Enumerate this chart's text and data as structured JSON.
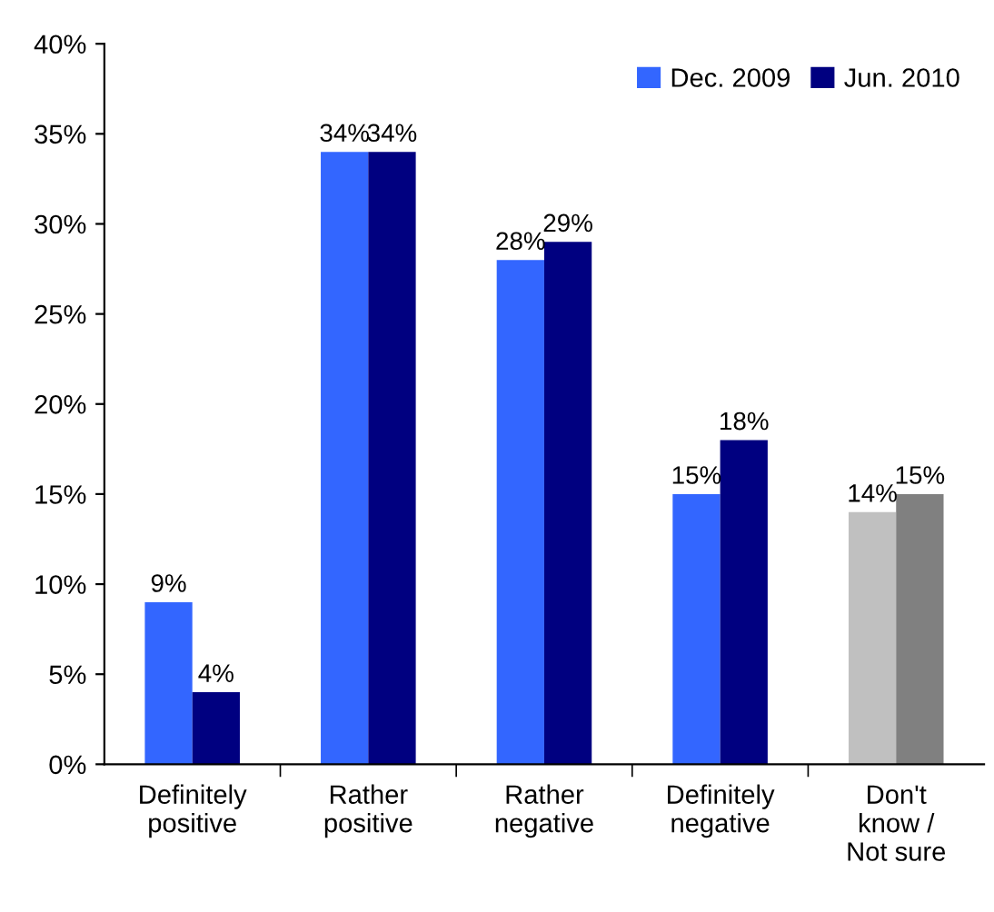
{
  "chart_data": {
    "type": "bar",
    "categories": [
      "Definitely\npositive",
      "Rather\npositive",
      "Rather\nnegative",
      "Definitely\nnegative",
      "Don't\nknow /\nNot sure"
    ],
    "series": [
      {
        "name": "Dec. 2009",
        "color": "#3366ff",
        "colors": [
          "#3366ff",
          "#3366ff",
          "#3366ff",
          "#3366ff",
          "#c0c0c0"
        ],
        "values": [
          9,
          34,
          28,
          15,
          14
        ],
        "value_labels": [
          "9%",
          "34%",
          "28%",
          "15%",
          "14%"
        ]
      },
      {
        "name": "Jun. 2010",
        "color": "#000080",
        "colors": [
          "#000080",
          "#000080",
          "#000080",
          "#000080",
          "#808080"
        ],
        "values": [
          4,
          34,
          29,
          18,
          15
        ],
        "value_labels": [
          "4%",
          "34%",
          "29%",
          "18%",
          "15%"
        ]
      }
    ],
    "ylim": [
      0,
      40
    ],
    "yticks": [
      {
        "value": 0,
        "label": "0%"
      },
      {
        "value": 5,
        "label": "5%"
      },
      {
        "value": 10,
        "label": "10%"
      },
      {
        "value": 15,
        "label": "15%"
      },
      {
        "value": 20,
        "label": "20%"
      },
      {
        "value": 25,
        "label": "25%"
      },
      {
        "value": 30,
        "label": "30%"
      },
      {
        "value": 35,
        "label": "35%"
      },
      {
        "value": 40,
        "label": "40%"
      }
    ],
    "grid": false,
    "legend": "top right"
  }
}
